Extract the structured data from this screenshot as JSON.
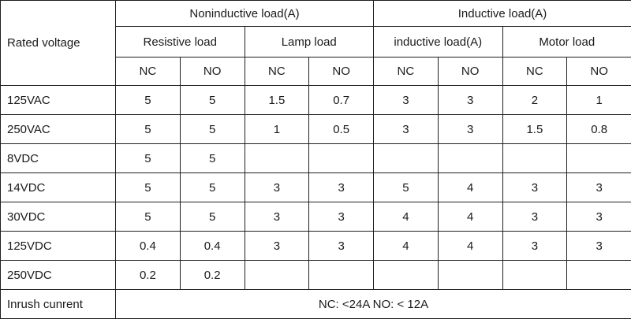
{
  "table": {
    "corner": "Rated voltage",
    "groups": [
      "Noninductive load(A)",
      "Inductive load(A)"
    ],
    "subs": [
      "Resistive load",
      "Lamp load",
      "inductive load(A)",
      "Motor load"
    ],
    "contacts": [
      "NC",
      "NO",
      "NC",
      "NO",
      "NC",
      "NO",
      "NC",
      "NO"
    ],
    "rows": [
      {
        "label": "125VAC",
        "values": [
          "5",
          "5",
          "1.5",
          "0.7",
          "3",
          "3",
          "2",
          "1"
        ]
      },
      {
        "label": "250VAC",
        "values": [
          "5",
          "5",
          "1",
          "0.5",
          "3",
          "3",
          "1.5",
          "0.8"
        ]
      },
      {
        "label": "8VDC",
        "values": [
          "5",
          "5",
          "",
          "",
          "",
          "",
          "",
          ""
        ]
      },
      {
        "label": "14VDC",
        "values": [
          "5",
          "5",
          "3",
          "3",
          "5",
          "4",
          "3",
          "3"
        ]
      },
      {
        "label": "30VDC",
        "values": [
          "5",
          "5",
          "3",
          "3",
          "4",
          "4",
          "3",
          "3"
        ]
      },
      {
        "label": "125VDC",
        "values": [
          "0.4",
          "0.4",
          "3",
          "3",
          "4",
          "4",
          "3",
          "3"
        ]
      },
      {
        "label": "250VDC",
        "values": [
          "0.2",
          "0.2",
          "",
          "",
          "",
          "",
          "",
          ""
        ]
      }
    ],
    "footer": {
      "label": "Inrush cunrent",
      "value": "NC: <24A NO: < 12A"
    }
  }
}
